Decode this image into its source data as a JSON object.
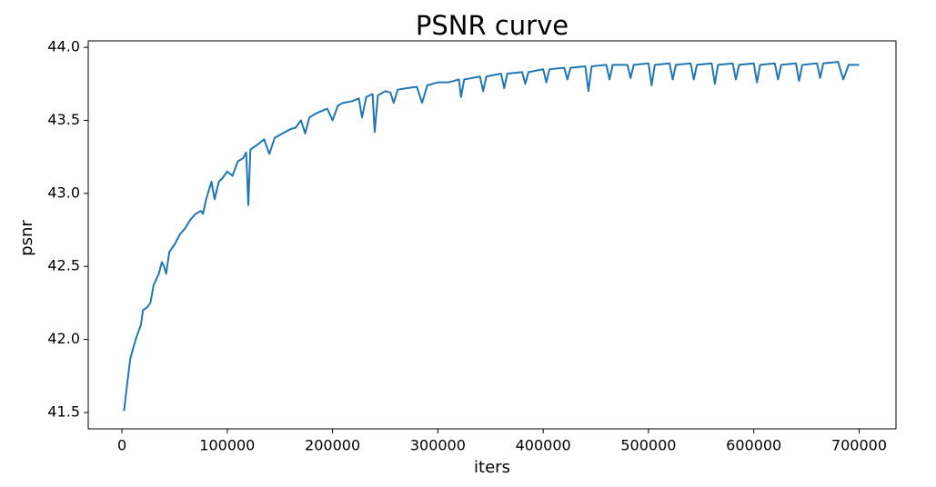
{
  "chart_data": {
    "type": "line",
    "title": "PSNR curve",
    "x_label": "iters",
    "y_label": "psnr",
    "x": [
      2000,
      5000,
      8000,
      13000,
      18000,
      20000,
      24000,
      27000,
      30000,
      35000,
      38000,
      40000,
      42000,
      45000,
      50000,
      55000,
      60000,
      65000,
      70000,
      75000,
      77000,
      80000,
      85000,
      88000,
      92000,
      95000,
      100000,
      105000,
      110000,
      115000,
      118000,
      120000,
      122000,
      128000,
      135000,
      140000,
      145000,
      150000,
      160000,
      165000,
      170000,
      174000,
      178000,
      185000,
      195000,
      200000,
      205000,
      210000,
      218000,
      225000,
      228000,
      232000,
      238000,
      240000,
      243000,
      250000,
      255000,
      258000,
      262000,
      270000,
      280000,
      285000,
      290000,
      300000,
      310000,
      320000,
      322000,
      325000,
      340000,
      343000,
      346000,
      360000,
      363000,
      366000,
      380000,
      383000,
      386000,
      400000,
      403000,
      406000,
      420000,
      423000,
      426000,
      440000,
      443000,
      446000,
      460000,
      463000,
      466000,
      480000,
      483000,
      486000,
      500000,
      503000,
      506000,
      520000,
      523000,
      526000,
      540000,
      543000,
      546000,
      560000,
      563000,
      566000,
      580000,
      583000,
      586000,
      600000,
      603000,
      606000,
      620000,
      623000,
      626000,
      640000,
      643000,
      646000,
      660000,
      663000,
      666000,
      680000,
      685000,
      690000,
      700000
    ],
    "series": [
      {
        "name": "psnr",
        "color": "#1f77b4",
        "values": [
          41.51,
          41.7,
          41.87,
          42.0,
          42.1,
          42.2,
          42.22,
          42.25,
          42.37,
          42.45,
          42.53,
          42.5,
          42.45,
          42.6,
          42.65,
          42.72,
          42.76,
          42.82,
          42.86,
          42.88,
          42.86,
          42.96,
          43.08,
          42.96,
          43.08,
          43.1,
          43.15,
          43.12,
          43.22,
          43.24,
          43.28,
          42.92,
          43.3,
          43.33,
          43.37,
          43.27,
          43.38,
          43.4,
          43.44,
          43.45,
          43.5,
          43.41,
          43.52,
          43.55,
          43.58,
          43.5,
          43.6,
          43.62,
          43.63,
          43.65,
          43.52,
          43.66,
          43.68,
          43.42,
          43.67,
          43.7,
          43.69,
          43.62,
          43.71,
          43.72,
          43.73,
          43.62,
          43.74,
          43.76,
          43.76,
          43.78,
          43.66,
          43.78,
          43.8,
          43.7,
          43.8,
          43.82,
          43.72,
          43.82,
          43.83,
          43.75,
          43.83,
          43.85,
          43.76,
          43.85,
          43.86,
          43.78,
          43.86,
          43.87,
          43.7,
          43.87,
          43.88,
          43.78,
          43.88,
          43.88,
          43.79,
          43.88,
          43.89,
          43.74,
          43.88,
          43.89,
          43.78,
          43.88,
          43.89,
          43.78,
          43.88,
          43.89,
          43.75,
          43.88,
          43.89,
          43.78,
          43.88,
          43.89,
          43.76,
          43.88,
          43.89,
          43.78,
          43.88,
          43.89,
          43.77,
          43.88,
          43.89,
          43.79,
          43.89,
          43.9,
          43.78,
          43.88,
          43.88
        ]
      }
    ],
    "xlim": [
      -32000,
      735000
    ],
    "ylim": [
      41.388,
      44.044
    ],
    "xticks": [
      0,
      100000,
      200000,
      300000,
      400000,
      500000,
      600000,
      700000
    ],
    "yticks": [
      41.5,
      {
        "value": 42,
        "label": "42.0"
      },
      42.5,
      {
        "value": 43,
        "label": "43.0"
      },
      43.5,
      {
        "value": 44,
        "label": "44.0"
      }
    ]
  }
}
